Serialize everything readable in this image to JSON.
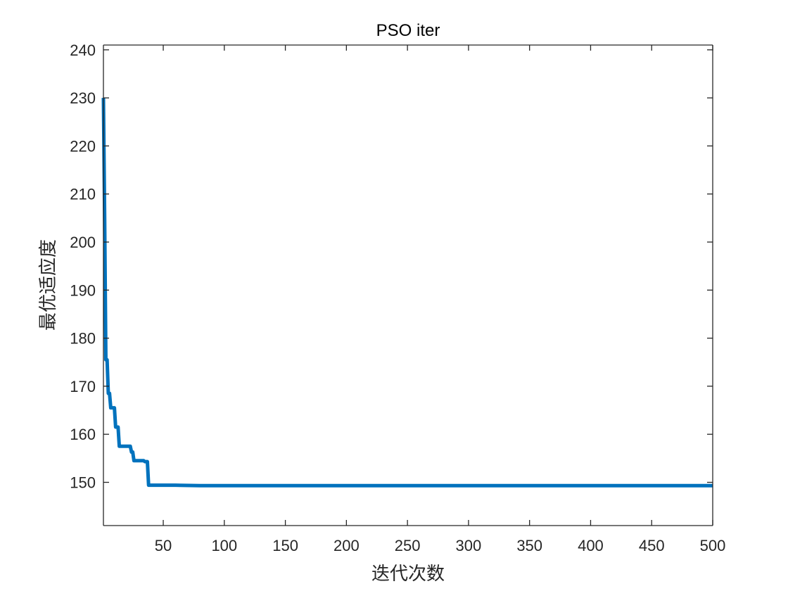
{
  "chart_data": {
    "type": "line",
    "title": "PSO iter",
    "xlabel": "迭代次数",
    "ylabel": "最优适应度",
    "xlim": [
      1,
      500
    ],
    "ylim": [
      141,
      241
    ],
    "xticks": [
      50,
      100,
      150,
      200,
      250,
      300,
      350,
      400,
      450,
      500
    ],
    "yticks": [
      150,
      160,
      170,
      180,
      190,
      200,
      210,
      220,
      230,
      240
    ],
    "grid": false,
    "box": true,
    "line_color": "#0072BD",
    "series": [
      {
        "x": [
          1,
          2,
          3,
          4,
          5,
          6,
          7,
          8,
          9,
          10,
          11,
          12,
          13,
          14,
          15,
          16,
          17,
          18,
          19,
          20,
          21,
          22,
          23,
          24,
          25,
          26,
          27,
          28,
          29,
          30,
          31,
          32,
          33,
          34,
          35,
          36,
          37,
          38,
          39,
          40,
          60,
          80,
          100,
          200,
          300,
          400,
          500
        ],
        "y": [
          230,
          205,
          175.5,
          175.5,
          168.5,
          168.5,
          165.5,
          165.5,
          165.5,
          165.5,
          161.5,
          161.5,
          161.5,
          157.5,
          157.5,
          157.5,
          157.5,
          157.5,
          157.5,
          157.5,
          157.5,
          157.5,
          157.5,
          156.3,
          156.3,
          154.5,
          154.5,
          154.5,
          154.5,
          154.5,
          154.5,
          154.5,
          154.5,
          154.5,
          154.3,
          154.3,
          154.3,
          149.4,
          149.4,
          149.4,
          149.4,
          149.3,
          149.3,
          149.3,
          149.3,
          149.3,
          149.3
        ]
      }
    ]
  }
}
